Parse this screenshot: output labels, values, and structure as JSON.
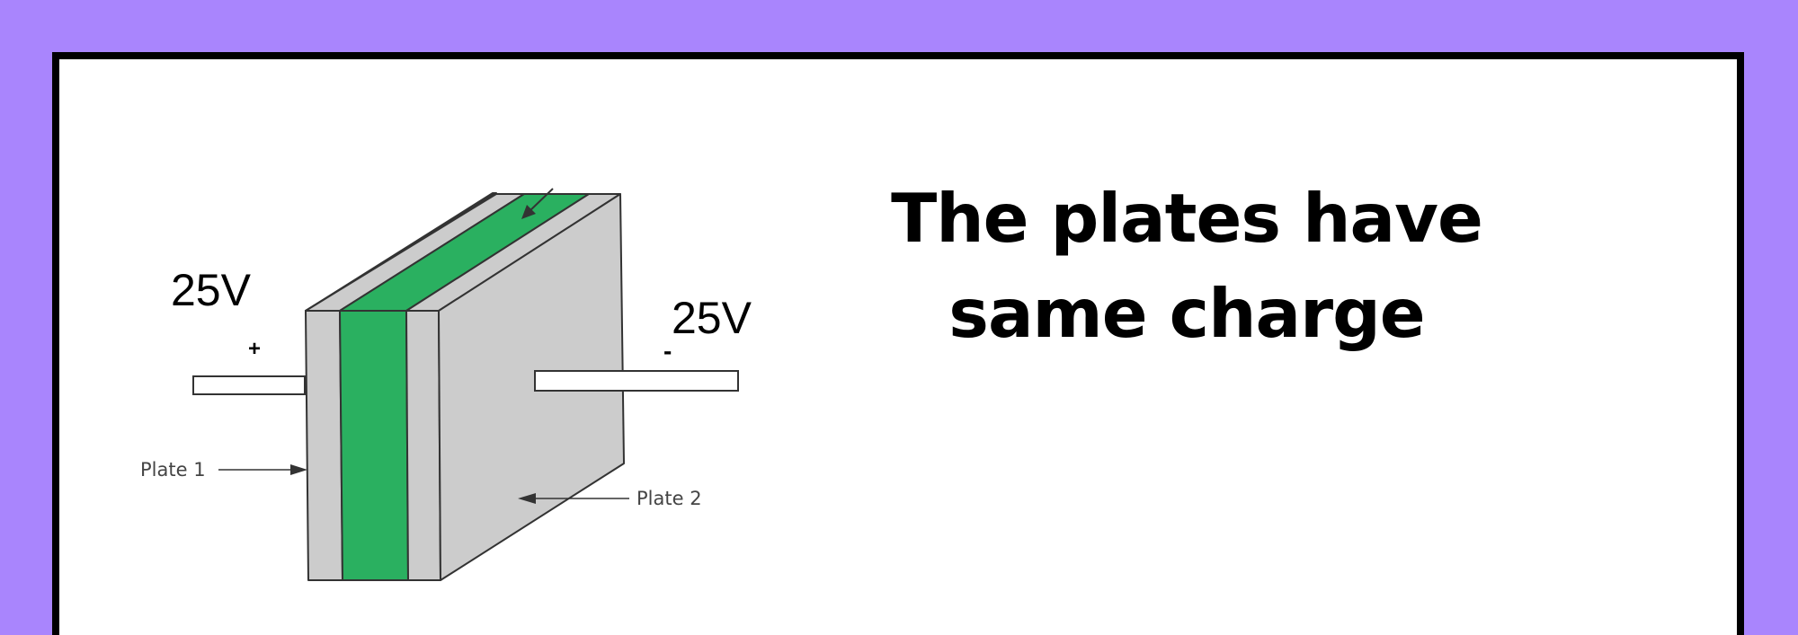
{
  "diagram": {
    "left_voltage": "25V",
    "left_sign": "+",
    "right_voltage": "25V",
    "right_sign": "-",
    "plate1_label": "Plate 1",
    "plate2_label": "Plate 2"
  },
  "heading": {
    "line1": "The plates have",
    "line2": "same charge"
  },
  "colors": {
    "background": "#a985fd",
    "dielectric": "#2ab060",
    "plate": "#cccccc"
  }
}
